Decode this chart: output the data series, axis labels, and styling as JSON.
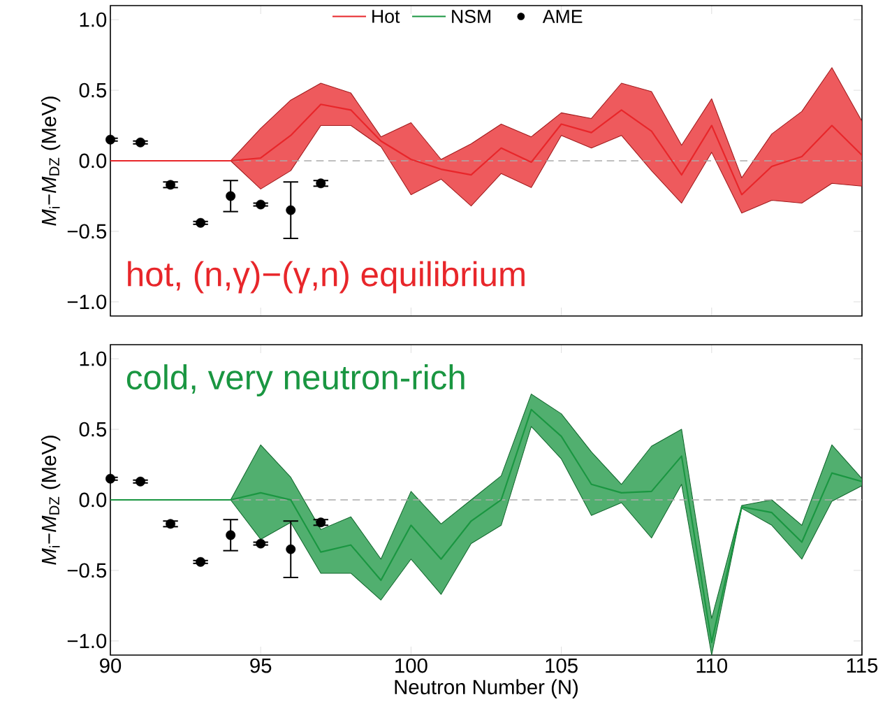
{
  "chart_data": [
    {
      "type": "line",
      "xlim": [
        90,
        115
      ],
      "xticks": [
        90,
        95,
        100,
        105,
        110,
        115
      ],
      "ylim": [
        -1.1,
        1.1
      ],
      "yticks": [
        {
          "value": -1.0,
          "label": "−1.0"
        },
        {
          "value": -0.5,
          "label": "−0.5"
        },
        {
          "value": 0.0,
          "label": "0.0"
        },
        {
          "value": 0.5,
          "label": "0.5"
        },
        {
          "value": 1.0,
          "label": "1.0"
        }
      ],
      "tick_labels": "y",
      "ylabel": "*M*$_{i}$−*M*$_{DZ}$ (MeV)",
      "legend": "top",
      "grid": false,
      "annotations": [
        "hot, (n,γ)−(γ,n) equilibrium"
      ],
      "ref_lines": [
        {
          "axis": "y",
          "value": 0,
          "color": "#aaaaaa",
          "line_style": "dashed"
        }
      ],
      "series": [
        {
          "name": "Hot",
          "color": "#e8262a",
          "marker": "none",
          "x": [
            90,
            91,
            92,
            93,
            94,
            95,
            96,
            97,
            98,
            99,
            100,
            101,
            102,
            103,
            104,
            105,
            106,
            107,
            108,
            109,
            110,
            111,
            112,
            113,
            114,
            115
          ],
          "values": [
            0,
            0,
            0,
            0,
            0,
            0.02,
            0.18,
            0.4,
            0.36,
            0.14,
            0.01,
            -0.06,
            -0.1,
            0.09,
            -0.01,
            0.26,
            0.2,
            0.36,
            0.21,
            -0.1,
            0.25,
            -0.24,
            -0.04,
            0.03,
            0.25,
            0.04
          ],
          "lower": [
            null,
            null,
            null,
            null,
            0,
            -0.2,
            -0.07,
            0.25,
            0.25,
            0.1,
            -0.24,
            -0.13,
            -0.32,
            -0.09,
            -0.19,
            0.18,
            0.09,
            0.18,
            -0.07,
            -0.3,
            0.06,
            -0.37,
            -0.28,
            -0.3,
            -0.16,
            -0.18
          ],
          "upper": [
            null,
            null,
            null,
            null,
            0,
            0.23,
            0.43,
            0.55,
            0.48,
            0.17,
            0.27,
            0.01,
            0.12,
            0.26,
            0.17,
            0.34,
            0.3,
            0.55,
            0.49,
            0.11,
            0.44,
            -0.12,
            0.19,
            0.35,
            0.66,
            0.28
          ]
        },
        {
          "name": "AME",
          "type": "scatter",
          "color": "#000000",
          "marker": "circle",
          "x": [
            90,
            91,
            92,
            93,
            94,
            95,
            96,
            97
          ],
          "values": [
            0.15,
            0.13,
            -0.17,
            -0.44,
            -0.25,
            -0.31,
            -0.35,
            -0.16
          ],
          "errors": [
            0.01,
            0.01,
            0.02,
            0.01,
            0.11,
            0.01,
            0.2,
            0.02
          ]
        }
      ]
    },
    {
      "type": "line",
      "xlim": [
        90,
        115
      ],
      "xticks": [
        90,
        95,
        100,
        105,
        110,
        115
      ],
      "ylim": [
        -1.1,
        1.1
      ],
      "yticks": [
        {
          "value": -1.0,
          "label": "−1.0"
        },
        {
          "value": -0.5,
          "label": "−0.5"
        },
        {
          "value": 0.0,
          "label": "0.0"
        },
        {
          "value": 0.5,
          "label": "0.5"
        },
        {
          "value": 1.0,
          "label": "1.0"
        }
      ],
      "xlabel": "Neutron Number (N)",
      "ylabel": "*M*$_{i}$−*M*$_{DZ}$ (MeV)",
      "grid": false,
      "annotations": [
        "cold, very neutron-rich"
      ],
      "ref_lines": [
        {
          "axis": "y",
          "value": 0,
          "color": "#aaaaaa",
          "line_style": "dashed"
        }
      ],
      "series": [
        {
          "name": "NSM",
          "color": "#1a9641",
          "marker": "none",
          "x": [
            90,
            91,
            92,
            93,
            94,
            95,
            96,
            97,
            98,
            99,
            100,
            101,
            102,
            103,
            104,
            105,
            106,
            107,
            108,
            109,
            110,
            111,
            112,
            113,
            114,
            115
          ],
          "values": [
            0,
            0,
            0,
            0,
            0,
            0.05,
            0.0,
            -0.37,
            -0.32,
            -0.57,
            -0.18,
            -0.42,
            -0.15,
            0.0,
            0.64,
            0.45,
            0.11,
            0.05,
            0.06,
            0.31,
            -1.01,
            -0.05,
            -0.09,
            -0.3,
            0.19,
            0.13
          ],
          "lower": [
            null,
            null,
            null,
            null,
            0,
            -0.28,
            -0.16,
            -0.52,
            -0.52,
            -0.71,
            -0.42,
            -0.67,
            -0.31,
            -0.18,
            0.52,
            0.29,
            -0.11,
            -0.02,
            -0.27,
            0.11,
            -1.1,
            -0.06,
            -0.18,
            -0.42,
            -0.01,
            0.1
          ],
          "upper": [
            null,
            null,
            null,
            null,
            0,
            0.39,
            0.16,
            -0.21,
            -0.12,
            -0.42,
            0.06,
            -0.17,
            0.0,
            0.17,
            0.75,
            0.61,
            0.34,
            0.11,
            0.38,
            0.5,
            -0.84,
            -0.04,
            0.0,
            -0.18,
            0.39,
            0.15
          ]
        },
        {
          "type": "scatter",
          "color": "#000000",
          "marker": "circle",
          "x": [
            90,
            91,
            92,
            93,
            94,
            95,
            96,
            97
          ],
          "values": [
            0.15,
            0.13,
            -0.17,
            -0.44,
            -0.25,
            -0.31,
            -0.35,
            -0.16
          ],
          "errors": [
            0.01,
            0.01,
            0.02,
            0.01,
            0.11,
            0.01,
            0.2,
            0.02
          ]
        }
      ]
    }
  ]
}
